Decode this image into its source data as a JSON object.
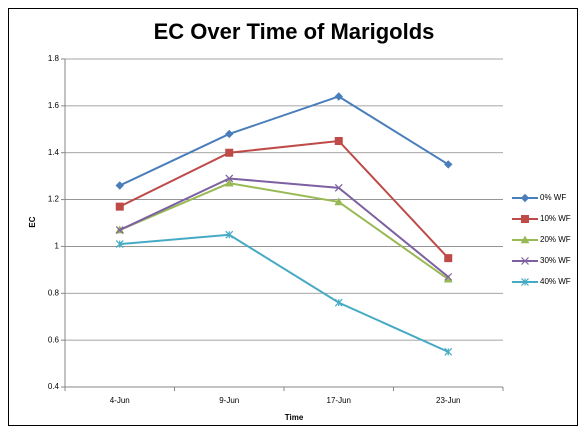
{
  "chart_data": {
    "type": "line",
    "title": "EC Over Time of Marigolds",
    "x_label": "Time",
    "y_label": "EC",
    "categories": [
      "4-Jun",
      "9-Jun",
      "17-Jun",
      "23-Jun"
    ],
    "series": [
      {
        "name": "0% WF",
        "color": "#4a7ebb",
        "marker": "diamond",
        "values": [
          1.26,
          1.48,
          1.64,
          1.35
        ]
      },
      {
        "name": "10% WF",
        "color": "#be4b48",
        "marker": "square",
        "values": [
          1.17,
          1.4,
          1.45,
          0.95
        ]
      },
      {
        "name": "20% WF",
        "color": "#98b954",
        "marker": "triangle",
        "values": [
          1.07,
          1.27,
          1.19,
          0.86
        ]
      },
      {
        "name": "30% WF",
        "color": "#7d60a0",
        "marker": "x",
        "values": [
          1.07,
          1.29,
          1.25,
          0.87
        ]
      },
      {
        "name": "40% WF",
        "color": "#46aac5",
        "marker": "star",
        "values": [
          1.01,
          1.05,
          0.76,
          0.55
        ]
      }
    ],
    "ylim": [
      0.4,
      1.8
    ],
    "yticks": [
      0.4,
      0.6,
      0.8,
      1,
      1.2,
      1.4,
      1.6,
      1.8
    ],
    "grid": true,
    "legend": "right"
  }
}
